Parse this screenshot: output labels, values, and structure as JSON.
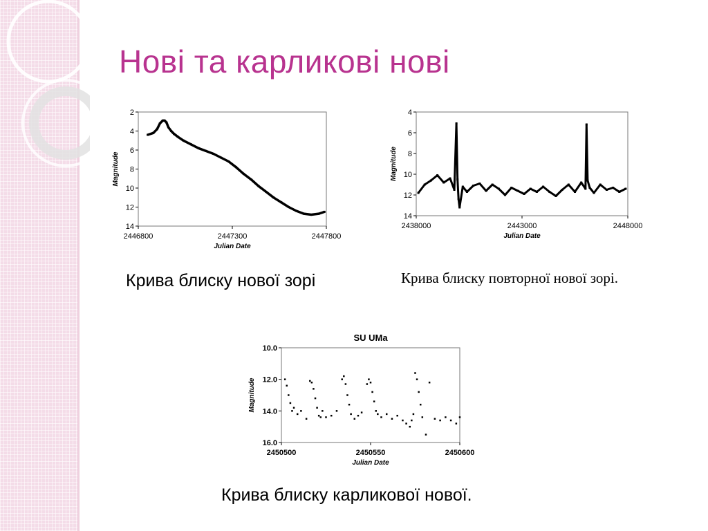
{
  "slide": {
    "title": "Нові та карликові нові"
  },
  "captions": {
    "nova": "Крива блиску нової зорі",
    "recurrent": "Крива блиску повторної нової зорі.",
    "dwarf": "Крива блиску карликової нової."
  },
  "colors": {
    "title": "#b8338f",
    "band": "#f4dce8",
    "data": "#000000"
  },
  "chart_data": [
    {
      "type": "scatter",
      "title": "",
      "xlabel": "Julian Date",
      "ylabel": "Magnitude",
      "xlim": [
        2446800,
        2447800
      ],
      "ylim": [
        2,
        14
      ],
      "y_inverted": true,
      "xticks": [
        2446800,
        2447300,
        2447800
      ],
      "yticks": [
        2,
        4,
        6,
        8,
        10,
        12,
        14
      ],
      "x_tick_labels": [
        "2446800",
        "2447300",
        "2447800"
      ],
      "y_tick_labels": [
        "2",
        "4",
        "6",
        "8",
        "10",
        "12",
        "14"
      ],
      "grid": false,
      "x": [
        2446850,
        2446880,
        2446900,
        2446915,
        2446930,
        2446940,
        2446950,
        2446960,
        2446975,
        2446990,
        2447010,
        2447040,
        2447080,
        2447120,
        2447160,
        2447200,
        2447240,
        2447280,
        2447320,
        2447360,
        2447400,
        2447440,
        2447480,
        2447520,
        2447560,
        2447600,
        2447640,
        2447680,
        2447720,
        2447760,
        2447790
      ],
      "y": [
        4.4,
        4.2,
        3.8,
        3.2,
        2.9,
        2.9,
        3.1,
        3.6,
        4.0,
        4.3,
        4.6,
        5.0,
        5.4,
        5.8,
        6.1,
        6.4,
        6.8,
        7.2,
        7.8,
        8.5,
        9.1,
        9.8,
        10.4,
        11.0,
        11.5,
        12.0,
        12.4,
        12.7,
        12.8,
        12.7,
        12.5
      ]
    },
    {
      "type": "scatter",
      "title": "",
      "xlabel": "Julian Date",
      "ylabel": "Magnitude",
      "xlim": [
        2438000,
        2448000
      ],
      "ylim": [
        4,
        14
      ],
      "y_inverted": true,
      "xticks": [
        2438000,
        2443000,
        2448000
      ],
      "yticks": [
        4,
        6,
        8,
        10,
        12,
        14
      ],
      "x_tick_labels": [
        "2438000",
        "2443000",
        "2448000"
      ],
      "y_tick_labels": [
        "4",
        "6",
        "8",
        "10",
        "12",
        "14"
      ],
      "grid": false,
      "x": [
        2438100,
        2438400,
        2438700,
        2439000,
        2439300,
        2439600,
        2439800,
        2439900,
        2439950,
        2440000,
        2440050,
        2440200,
        2440400,
        2440700,
        2441000,
        2441300,
        2441600,
        2441900,
        2442200,
        2442500,
        2442800,
        2443100,
        2443400,
        2443700,
        2444000,
        2444300,
        2444600,
        2444900,
        2445200,
        2445500,
        2445800,
        2446000,
        2446050,
        2446100,
        2446200,
        2446400,
        2446700,
        2447000,
        2447300,
        2447600,
        2447900
      ],
      "y": [
        11.8,
        11.0,
        10.6,
        10.1,
        10.8,
        10.4,
        11.5,
        5.1,
        10.5,
        12.4,
        13.2,
        11.2,
        11.7,
        11.1,
        10.9,
        11.6,
        11.0,
        11.4,
        12.0,
        11.3,
        11.6,
        11.9,
        11.4,
        11.7,
        11.2,
        11.7,
        12.1,
        11.5,
        11.0,
        11.7,
        10.8,
        11.4,
        5.2,
        10.6,
        11.3,
        11.8,
        11.0,
        11.5,
        11.3,
        11.7,
        11.4
      ]
    },
    {
      "type": "scatter",
      "title": "SU UMa",
      "xlabel": "Julian Date",
      "ylabel": "Magnitude",
      "xlim": [
        2450500,
        2450600
      ],
      "ylim": [
        10,
        16
      ],
      "y_inverted": true,
      "xticks": [
        2450500,
        2450550,
        2450600
      ],
      "yticks": [
        10,
        12,
        14,
        16
      ],
      "x_tick_labels": [
        "2450500",
        "2450550",
        "2450600"
      ],
      "y_tick_labels": [
        "10.0",
        "12.0",
        "14.0",
        "16.0"
      ],
      "grid": false,
      "x": [
        2450502,
        2450503,
        2450504,
        2450505,
        2450506,
        2450507,
        2450509,
        2450511,
        2450514,
        2450516,
        2450517,
        2450518,
        2450519,
        2450520,
        2450521,
        2450522,
        2450523,
        2450525,
        2450528,
        2450531,
        2450534,
        2450535,
        2450536,
        2450537,
        2450538,
        2450539,
        2450541,
        2450543,
        2450545,
        2450548,
        2450549,
        2450550,
        2450551,
        2450552,
        2450553,
        2450554,
        2450556,
        2450559,
        2450562,
        2450565,
        2450568,
        2450570,
        2450572,
        2450573,
        2450574,
        2450575,
        2450576,
        2450577,
        2450578,
        2450579,
        2450581,
        2450583,
        2450586,
        2450589,
        2450592,
        2450595,
        2450598,
        2450600
      ],
      "y": [
        12.0,
        12.4,
        13.0,
        13.5,
        14.0,
        13.8,
        14.2,
        14.0,
        14.5,
        12.1,
        12.2,
        12.6,
        13.2,
        13.8,
        14.3,
        14.4,
        14.0,
        14.4,
        14.3,
        14.0,
        12.0,
        11.8,
        12.3,
        13.0,
        13.6,
        14.2,
        14.5,
        14.3,
        14.1,
        12.3,
        12.0,
        12.2,
        12.8,
        13.4,
        14.0,
        14.2,
        14.4,
        14.2,
        14.5,
        14.3,
        14.6,
        14.8,
        15.0,
        14.6,
        14.2,
        11.6,
        12.0,
        12.8,
        13.6,
        14.4,
        15.5,
        12.2,
        14.5,
        14.6,
        14.4,
        14.6,
        14.8,
        14.4
      ]
    }
  ]
}
